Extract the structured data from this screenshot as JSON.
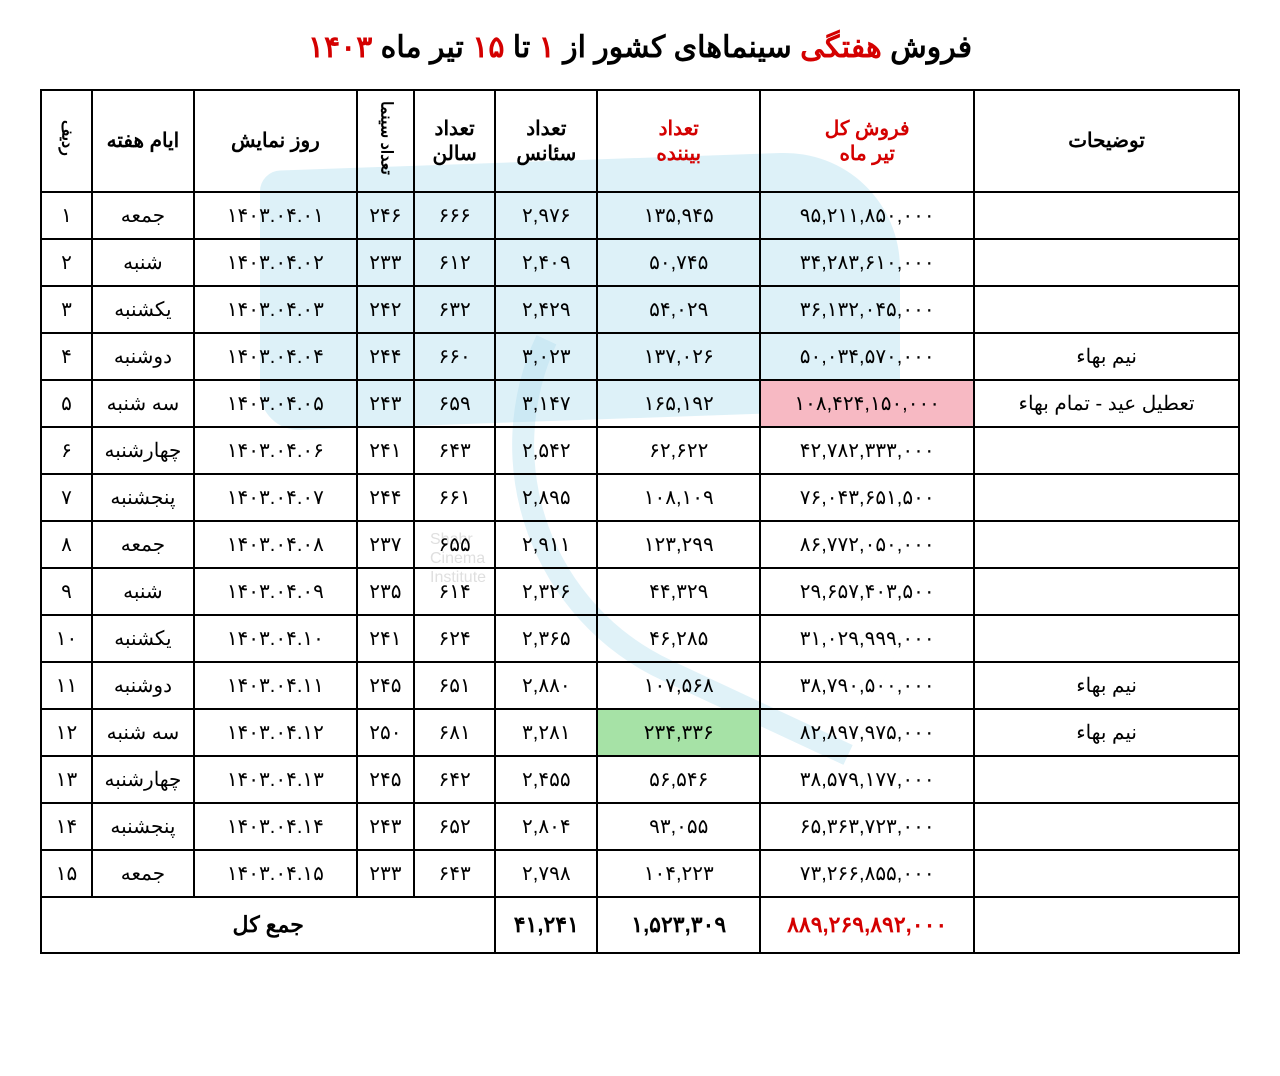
{
  "title": {
    "pre": "فروش ",
    "bold_red1": "هفتگی",
    "mid": " سینماهای کشور از ",
    "bold_red2": "۱",
    "mid2": " تا ",
    "bold_red3": "۱۵",
    "mid3": " تیر ماه ",
    "bold_red4": "۱۴۰۳"
  },
  "headers": {
    "notes": "توضیحات",
    "sales": "فروش کل\nتیر ماه",
    "viewers": "تعداد\nبیننده",
    "sessions": "تعداد\nسئانس",
    "halls": "تعداد\nسالن",
    "cinemas": "تعداد سینما",
    "date": "روز نمایش",
    "weekday": "ایام هفته",
    "row": "ردیف"
  },
  "rows": [
    {
      "n": "۱",
      "day": "جمعه",
      "date": "۱۴۰۳.۰۴.۰۱",
      "cin": "۲۴۶",
      "halls": "۶۶۶",
      "sess": "۲,۹۷۶",
      "view": "۱۳۵,۹۴۵",
      "sales": "۹۵,۲۱۱,۸۵۰,۰۰۰",
      "notes": ""
    },
    {
      "n": "۲",
      "day": "شنبه",
      "date": "۱۴۰۳.۰۴.۰۲",
      "cin": "۲۳۳",
      "halls": "۶۱۲",
      "sess": "۲,۴۰۹",
      "view": "۵۰,۷۴۵",
      "sales": "۳۴,۲۸۳,۶۱۰,۰۰۰",
      "notes": ""
    },
    {
      "n": "۳",
      "day": "یکشنبه",
      "date": "۱۴۰۳.۰۴.۰۳",
      "cin": "۲۴۲",
      "halls": "۶۳۲",
      "sess": "۲,۴۲۹",
      "view": "۵۴,۰۲۹",
      "sales": "۳۶,۱۳۲,۰۴۵,۰۰۰",
      "notes": ""
    },
    {
      "n": "۴",
      "day": "دوشنبه",
      "date": "۱۴۰۳.۰۴.۰۴",
      "cin": "۲۴۴",
      "halls": "۶۶۰",
      "sess": "۳,۰۲۳",
      "view": "۱۳۷,۰۲۶",
      "sales": "۵۰,۰۳۴,۵۷۰,۰۰۰",
      "notes": "نیم بهاء"
    },
    {
      "n": "۵",
      "day": "سه شنبه",
      "date": "۱۴۰۳.۰۴.۰۵",
      "cin": "۲۴۳",
      "halls": "۶۵۹",
      "sess": "۳,۱۴۷",
      "view": "۱۶۵,۱۹۲",
      "sales": "۱۰۸,۴۲۴,۱۵۰,۰۰۰",
      "notes": "تعطیل عید - تمام بهاء",
      "sales_hl": "pink"
    },
    {
      "n": "۶",
      "day": "چهارشنبه",
      "date": "۱۴۰۳.۰۴.۰۶",
      "cin": "۲۴۱",
      "halls": "۶۴۳",
      "sess": "۲,۵۴۲",
      "view": "۶۲,۶۲۲",
      "sales": "۴۲,۷۸۲,۳۳۳,۰۰۰",
      "notes": ""
    },
    {
      "n": "۷",
      "day": "پنجشنبه",
      "date": "۱۴۰۳.۰۴.۰۷",
      "cin": "۲۴۴",
      "halls": "۶۶۱",
      "sess": "۲,۸۹۵",
      "view": "۱۰۸,۱۰۹",
      "sales": "۷۶,۰۴۳,۶۵۱,۵۰۰",
      "notes": ""
    },
    {
      "n": "۸",
      "day": "جمعه",
      "date": "۱۴۰۳.۰۴.۰۸",
      "cin": "۲۳۷",
      "halls": "۶۵۵",
      "sess": "۲,۹۱۱",
      "view": "۱۲۳,۲۹۹",
      "sales": "۸۶,۷۷۲,۰۵۰,۰۰۰",
      "notes": ""
    },
    {
      "n": "۹",
      "day": "شنبه",
      "date": "۱۴۰۳.۰۴.۰۹",
      "cin": "۲۳۵",
      "halls": "۶۱۴",
      "sess": "۲,۳۲۶",
      "view": "۴۴,۳۲۹",
      "sales": "۲۹,۶۵۷,۴۰۳,۵۰۰",
      "notes": ""
    },
    {
      "n": "۱۰",
      "day": "یکشنبه",
      "date": "۱۴۰۳.۰۴.۱۰",
      "cin": "۲۴۱",
      "halls": "۶۲۴",
      "sess": "۲,۳۶۵",
      "view": "۴۶,۲۸۵",
      "sales": "۳۱,۰۲۹,۹۹۹,۰۰۰",
      "notes": ""
    },
    {
      "n": "۱۱",
      "day": "دوشنبه",
      "date": "۱۴۰۳.۰۴.۱۱",
      "cin": "۲۴۵",
      "halls": "۶۵۱",
      "sess": "۲,۸۸۰",
      "view": "۱۰۷,۵۶۸",
      "sales": "۳۸,۷۹۰,۵۰۰,۰۰۰",
      "notes": "نیم بهاء"
    },
    {
      "n": "۱۲",
      "day": "سه شنبه",
      "date": "۱۴۰۳.۰۴.۱۲",
      "cin": "۲۵۰",
      "halls": "۶۸۱",
      "sess": "۳,۲۸۱",
      "view": "۲۳۴,۳۳۶",
      "sales": "۸۲,۸۹۷,۹۷۵,۰۰۰",
      "notes": "نیم بهاء",
      "view_hl": "green"
    },
    {
      "n": "۱۳",
      "day": "چهارشنبه",
      "date": "۱۴۰۳.۰۴.۱۳",
      "cin": "۲۴۵",
      "halls": "۶۴۲",
      "sess": "۲,۴۵۵",
      "view": "۵۶,۵۴۶",
      "sales": "۳۸,۵۷۹,۱۷۷,۰۰۰",
      "notes": ""
    },
    {
      "n": "۱۴",
      "day": "پنجشنبه",
      "date": "۱۴۰۳.۰۴.۱۴",
      "cin": "۲۴۳",
      "halls": "۶۵۲",
      "sess": "۲,۸۰۴",
      "view": "۹۳,۰۵۵",
      "sales": "۶۵,۳۶۳,۷۲۳,۰۰۰",
      "notes": ""
    },
    {
      "n": "۱۵",
      "day": "جمعه",
      "date": "۱۴۰۳.۰۴.۱۵",
      "cin": "۲۳۳",
      "halls": "۶۴۳",
      "sess": "۲,۷۹۸",
      "view": "۱۰۴,۲۲۳",
      "sales": "۷۳,۲۶۶,۸۵۵,۰۰۰",
      "notes": ""
    }
  ],
  "totals": {
    "label": "جمع کل",
    "sessions": "۴۱,۲۴۱",
    "viewers": "۱,۵۲۳,۳۰۹",
    "sales": "۸۸۹,۲۶۹,۸۹۲,۰۰۰"
  },
  "style": {
    "highlight_pink": "#f7b9c3",
    "highlight_green": "#a6e2a6",
    "red": "#d40000",
    "border": "#000000"
  }
}
